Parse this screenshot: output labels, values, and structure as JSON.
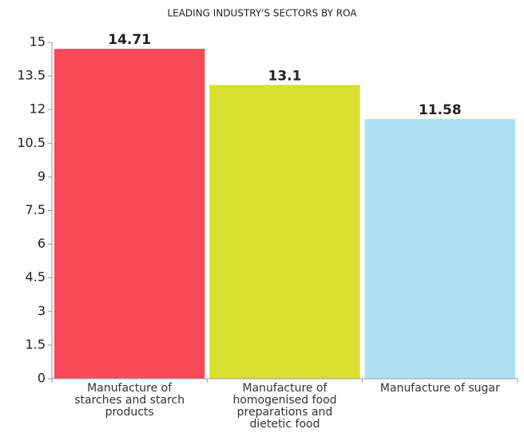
{
  "chart_data": {
    "type": "bar",
    "title": "LEADING INDUSTRY'S SECTORS BY ROA",
    "categories": [
      "Manufacture of starches and starch products",
      "Manufacture of homogenised food preparations and dietetic food",
      "Manufacture of sugar"
    ],
    "values": [
      14.71,
      13.1,
      11.58
    ],
    "colors": [
      "#f94a5a",
      "#d8e032",
      "#aee0f2"
    ],
    "ylim": [
      0,
      15
    ],
    "yticks": [
      0,
      1.5,
      3,
      4.5,
      6,
      7.5,
      9,
      10.5,
      12,
      13.5,
      15
    ],
    "grid": false
  }
}
